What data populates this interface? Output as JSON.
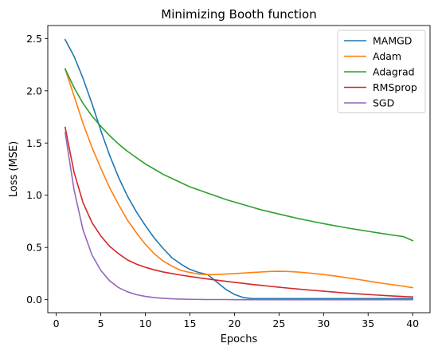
{
  "chart_data": {
    "type": "line",
    "title": "Minimizing Booth function",
    "xlabel": "Epochs",
    "ylabel": "Loss (MSE)",
    "xlim": [
      -0.95,
      41.95
    ],
    "ylim": [
      -0.125,
      2.625
    ],
    "xticks": [
      0,
      5,
      10,
      15,
      20,
      25,
      30,
      35,
      40
    ],
    "yticks": [
      0.0,
      0.5,
      1.0,
      1.5,
      2.0,
      2.5
    ],
    "xtick_labels": [
      "0",
      "5",
      "10",
      "15",
      "20",
      "25",
      "30",
      "35",
      "40"
    ],
    "ytick_labels": [
      "0.0",
      "0.5",
      "1.0",
      "1.5",
      "2.0",
      "2.5"
    ],
    "legend_position": "top-right",
    "grid": false,
    "x": [
      1,
      2,
      3,
      4,
      5,
      6,
      7,
      8,
      9,
      10,
      11,
      12,
      13,
      14,
      15,
      16,
      17,
      18,
      19,
      20,
      21,
      22,
      23,
      24,
      25,
      26,
      27,
      28,
      29,
      30,
      31,
      32,
      33,
      34,
      35,
      36,
      37,
      38,
      39,
      40
    ],
    "series": [
      {
        "name": "MAMGD",
        "color": "#1f77b4",
        "values": [
          2.49,
          2.33,
          2.12,
          1.88,
          1.62,
          1.38,
          1.17,
          0.99,
          0.84,
          0.71,
          0.59,
          0.49,
          0.4,
          0.34,
          0.29,
          0.26,
          0.24,
          0.17,
          0.1,
          0.05,
          0.02,
          0.01,
          0.01,
          0.01,
          0.01,
          0.01,
          0.01,
          0.01,
          0.01,
          0.01,
          0.01,
          0.01,
          0.01,
          0.01,
          0.01,
          0.01,
          0.01,
          0.01,
          0.01,
          0.01
        ]
      },
      {
        "name": "Adam",
        "color": "#ff7f0e",
        "values": [
          2.21,
          1.95,
          1.69,
          1.46,
          1.26,
          1.07,
          0.91,
          0.76,
          0.64,
          0.53,
          0.44,
          0.37,
          0.32,
          0.28,
          0.26,
          0.245,
          0.24,
          0.24,
          0.245,
          0.25,
          0.255,
          0.26,
          0.265,
          0.27,
          0.272,
          0.27,
          0.265,
          0.258,
          0.25,
          0.24,
          0.23,
          0.218,
          0.205,
          0.192,
          0.178,
          0.165,
          0.152,
          0.14,
          0.128,
          0.115
        ]
      },
      {
        "name": "Adagrad",
        "color": "#2ca02c",
        "values": [
          2.21,
          2.03,
          1.88,
          1.76,
          1.66,
          1.57,
          1.49,
          1.42,
          1.36,
          1.3,
          1.25,
          1.2,
          1.16,
          1.12,
          1.08,
          1.05,
          1.02,
          0.99,
          0.96,
          0.935,
          0.91,
          0.885,
          0.86,
          0.84,
          0.82,
          0.8,
          0.78,
          0.762,
          0.745,
          0.728,
          0.712,
          0.697,
          0.682,
          0.668,
          0.654,
          0.641,
          0.628,
          0.615,
          0.603,
          0.565
        ]
      },
      {
        "name": "RMSprop",
        "color": "#d62728",
        "values": [
          1.65,
          1.22,
          0.93,
          0.74,
          0.61,
          0.51,
          0.44,
          0.38,
          0.34,
          0.31,
          0.285,
          0.265,
          0.25,
          0.235,
          0.222,
          0.21,
          0.198,
          0.187,
          0.176,
          0.166,
          0.156,
          0.146,
          0.137,
          0.128,
          0.119,
          0.111,
          0.103,
          0.095,
          0.088,
          0.081,
          0.074,
          0.067,
          0.061,
          0.055,
          0.049,
          0.044,
          0.039,
          0.034,
          0.03,
          0.026
        ]
      },
      {
        "name": "SGD",
        "color": "#9467bd",
        "values": [
          1.6,
          1.05,
          0.67,
          0.43,
          0.28,
          0.18,
          0.115,
          0.075,
          0.048,
          0.031,
          0.02,
          0.013,
          0.008,
          0.005,
          0.003,
          0.002,
          0.001,
          0.001,
          0.001,
          0.0,
          0.0,
          0.0,
          0.0,
          0.0,
          0.0,
          0.0,
          0.0,
          0.0,
          0.0,
          0.0,
          0.0,
          0.0,
          0.0,
          0.0,
          0.0,
          0.0,
          0.0,
          0.0,
          0.0,
          0.0
        ]
      }
    ]
  }
}
